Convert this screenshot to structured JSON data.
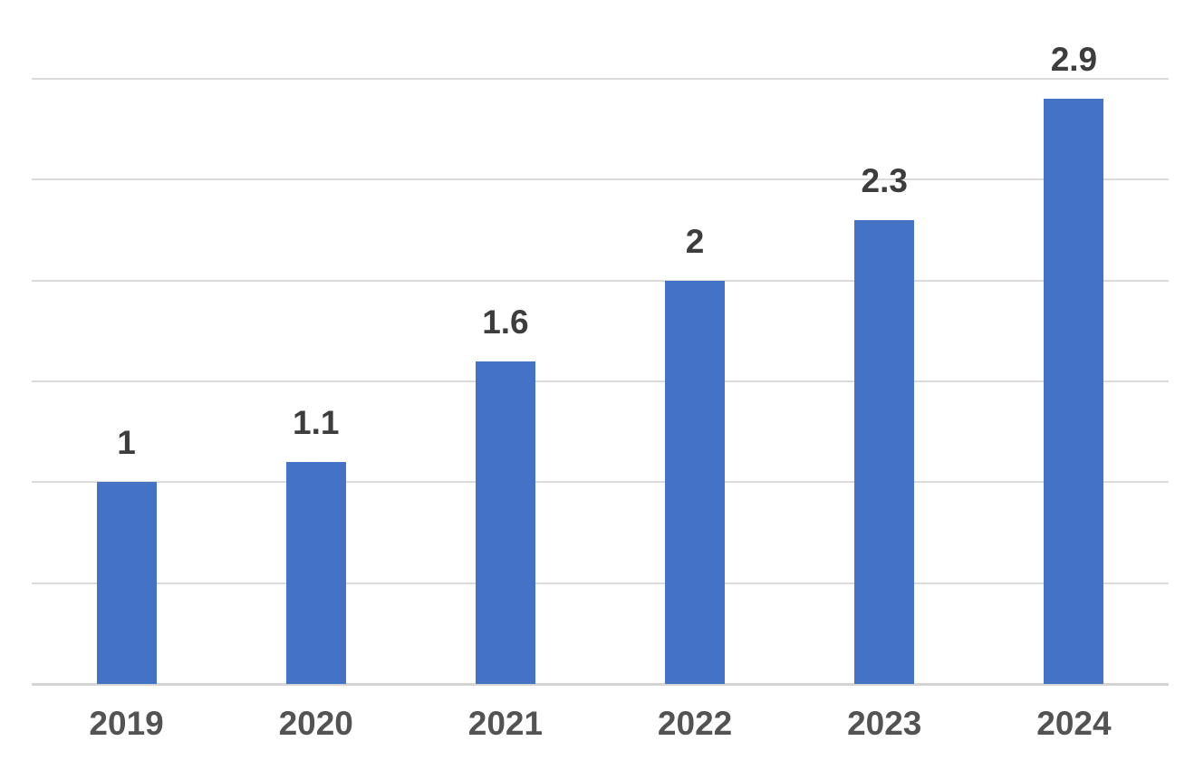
{
  "chart_data": {
    "type": "bar",
    "categories": [
      "2019",
      "2020",
      "2021",
      "2022",
      "2023",
      "2024"
    ],
    "values": [
      1,
      1.1,
      1.6,
      2,
      2.3,
      2.9
    ],
    "data_labels": [
      "1",
      "1.1",
      "1.6",
      "2",
      "2.3",
      "2.9"
    ],
    "title": "",
    "xlabel": "",
    "ylabel": "",
    "ylim": [
      0,
      3
    ],
    "ytick_step": 0.5,
    "grid": true,
    "y_tick_labels_visible": false,
    "legend": false,
    "bar_color": "#4472C4",
    "gridline_color": "#DBDBDB",
    "axis_line_color": "#D4D4D4",
    "data_label_color": "#3D3D3D",
    "axis_label_color": "#535353"
  }
}
